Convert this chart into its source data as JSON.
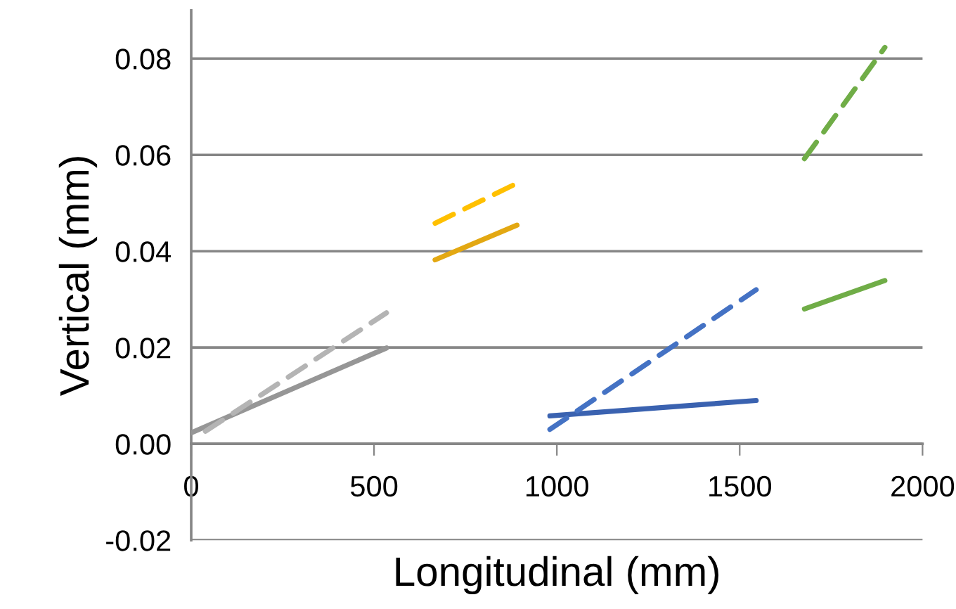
{
  "chart_data": {
    "type": "line",
    "xlabel": "Longitudinal (mm)",
    "ylabel": "Vertical (mm)",
    "xlim": [
      0,
      2000
    ],
    "xticks": [
      0,
      500,
      1000,
      1500,
      2000
    ],
    "ylim": [
      -0.02,
      0.09
    ],
    "yticks": [
      -0.02,
      {
        "value": 0,
        "label": "0.00"
      },
      0.02,
      0.04,
      0.06,
      0.08
    ],
    "grid": "y",
    "marker": "none",
    "series": [
      {
        "color": "#969696",
        "line_style": "solid",
        "x": [
          0,
          534
        ],
        "values": [
          0.0023,
          0.0199
        ]
      },
      {
        "color": "#b4b4b4",
        "line_style": "dashed",
        "x": [
          39,
          534
        ],
        "values": [
          0.0026,
          0.0272
        ]
      },
      {
        "color": "#e3a812",
        "line_style": "solid",
        "x": [
          667,
          891
        ],
        "values": [
          0.0382,
          0.0454
        ]
      },
      {
        "color": "#ffc000",
        "line_style": "dashed",
        "x": [
          667,
          891
        ],
        "values": [
          0.0458,
          0.0541
        ]
      },
      {
        "color": "#3a62b0",
        "line_style": "solid",
        "x": [
          981,
          1545
        ],
        "values": [
          0.0058,
          0.009
        ]
      },
      {
        "color": "#4472c4",
        "line_style": "dashed",
        "x": [
          981,
          1545
        ],
        "values": [
          0.003,
          0.032
        ]
      },
      {
        "color": "#70ad47",
        "line_style": "solid",
        "x": [
          1677,
          1897
        ],
        "values": [
          0.028,
          0.0339
        ]
      },
      {
        "color": "#70ad47",
        "line_style": "dashed",
        "x": [
          1677,
          1897
        ],
        "values": [
          0.0592,
          0.0823
        ]
      }
    ]
  }
}
